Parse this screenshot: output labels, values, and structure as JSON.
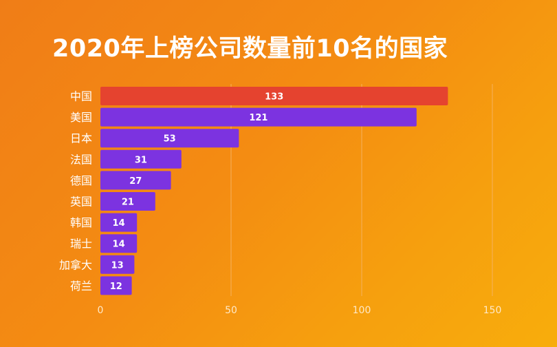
{
  "chart_data": {
    "type": "bar",
    "orientation": "horizontal",
    "title": "2020年上榜公司数量前10名的国家",
    "xlabel": "",
    "ylabel": "",
    "xlim": [
      0,
      150
    ],
    "xticks": [
      0,
      50,
      100,
      150
    ],
    "grid": true,
    "categories": [
      "中国",
      "美国",
      "日本",
      "法国",
      "德国",
      "英国",
      "韩国",
      "瑞士",
      "加拿大",
      "荷兰"
    ],
    "values": [
      133,
      121,
      53,
      31,
      27,
      21,
      14,
      14,
      13,
      12
    ],
    "highlight_category": "中国"
  },
  "colors": {
    "highlight": "#e5432f",
    "bar": "#7c33e0",
    "grid": "#f5b15e",
    "text": "#ffffff",
    "axis_text": "#ffe9c8"
  }
}
